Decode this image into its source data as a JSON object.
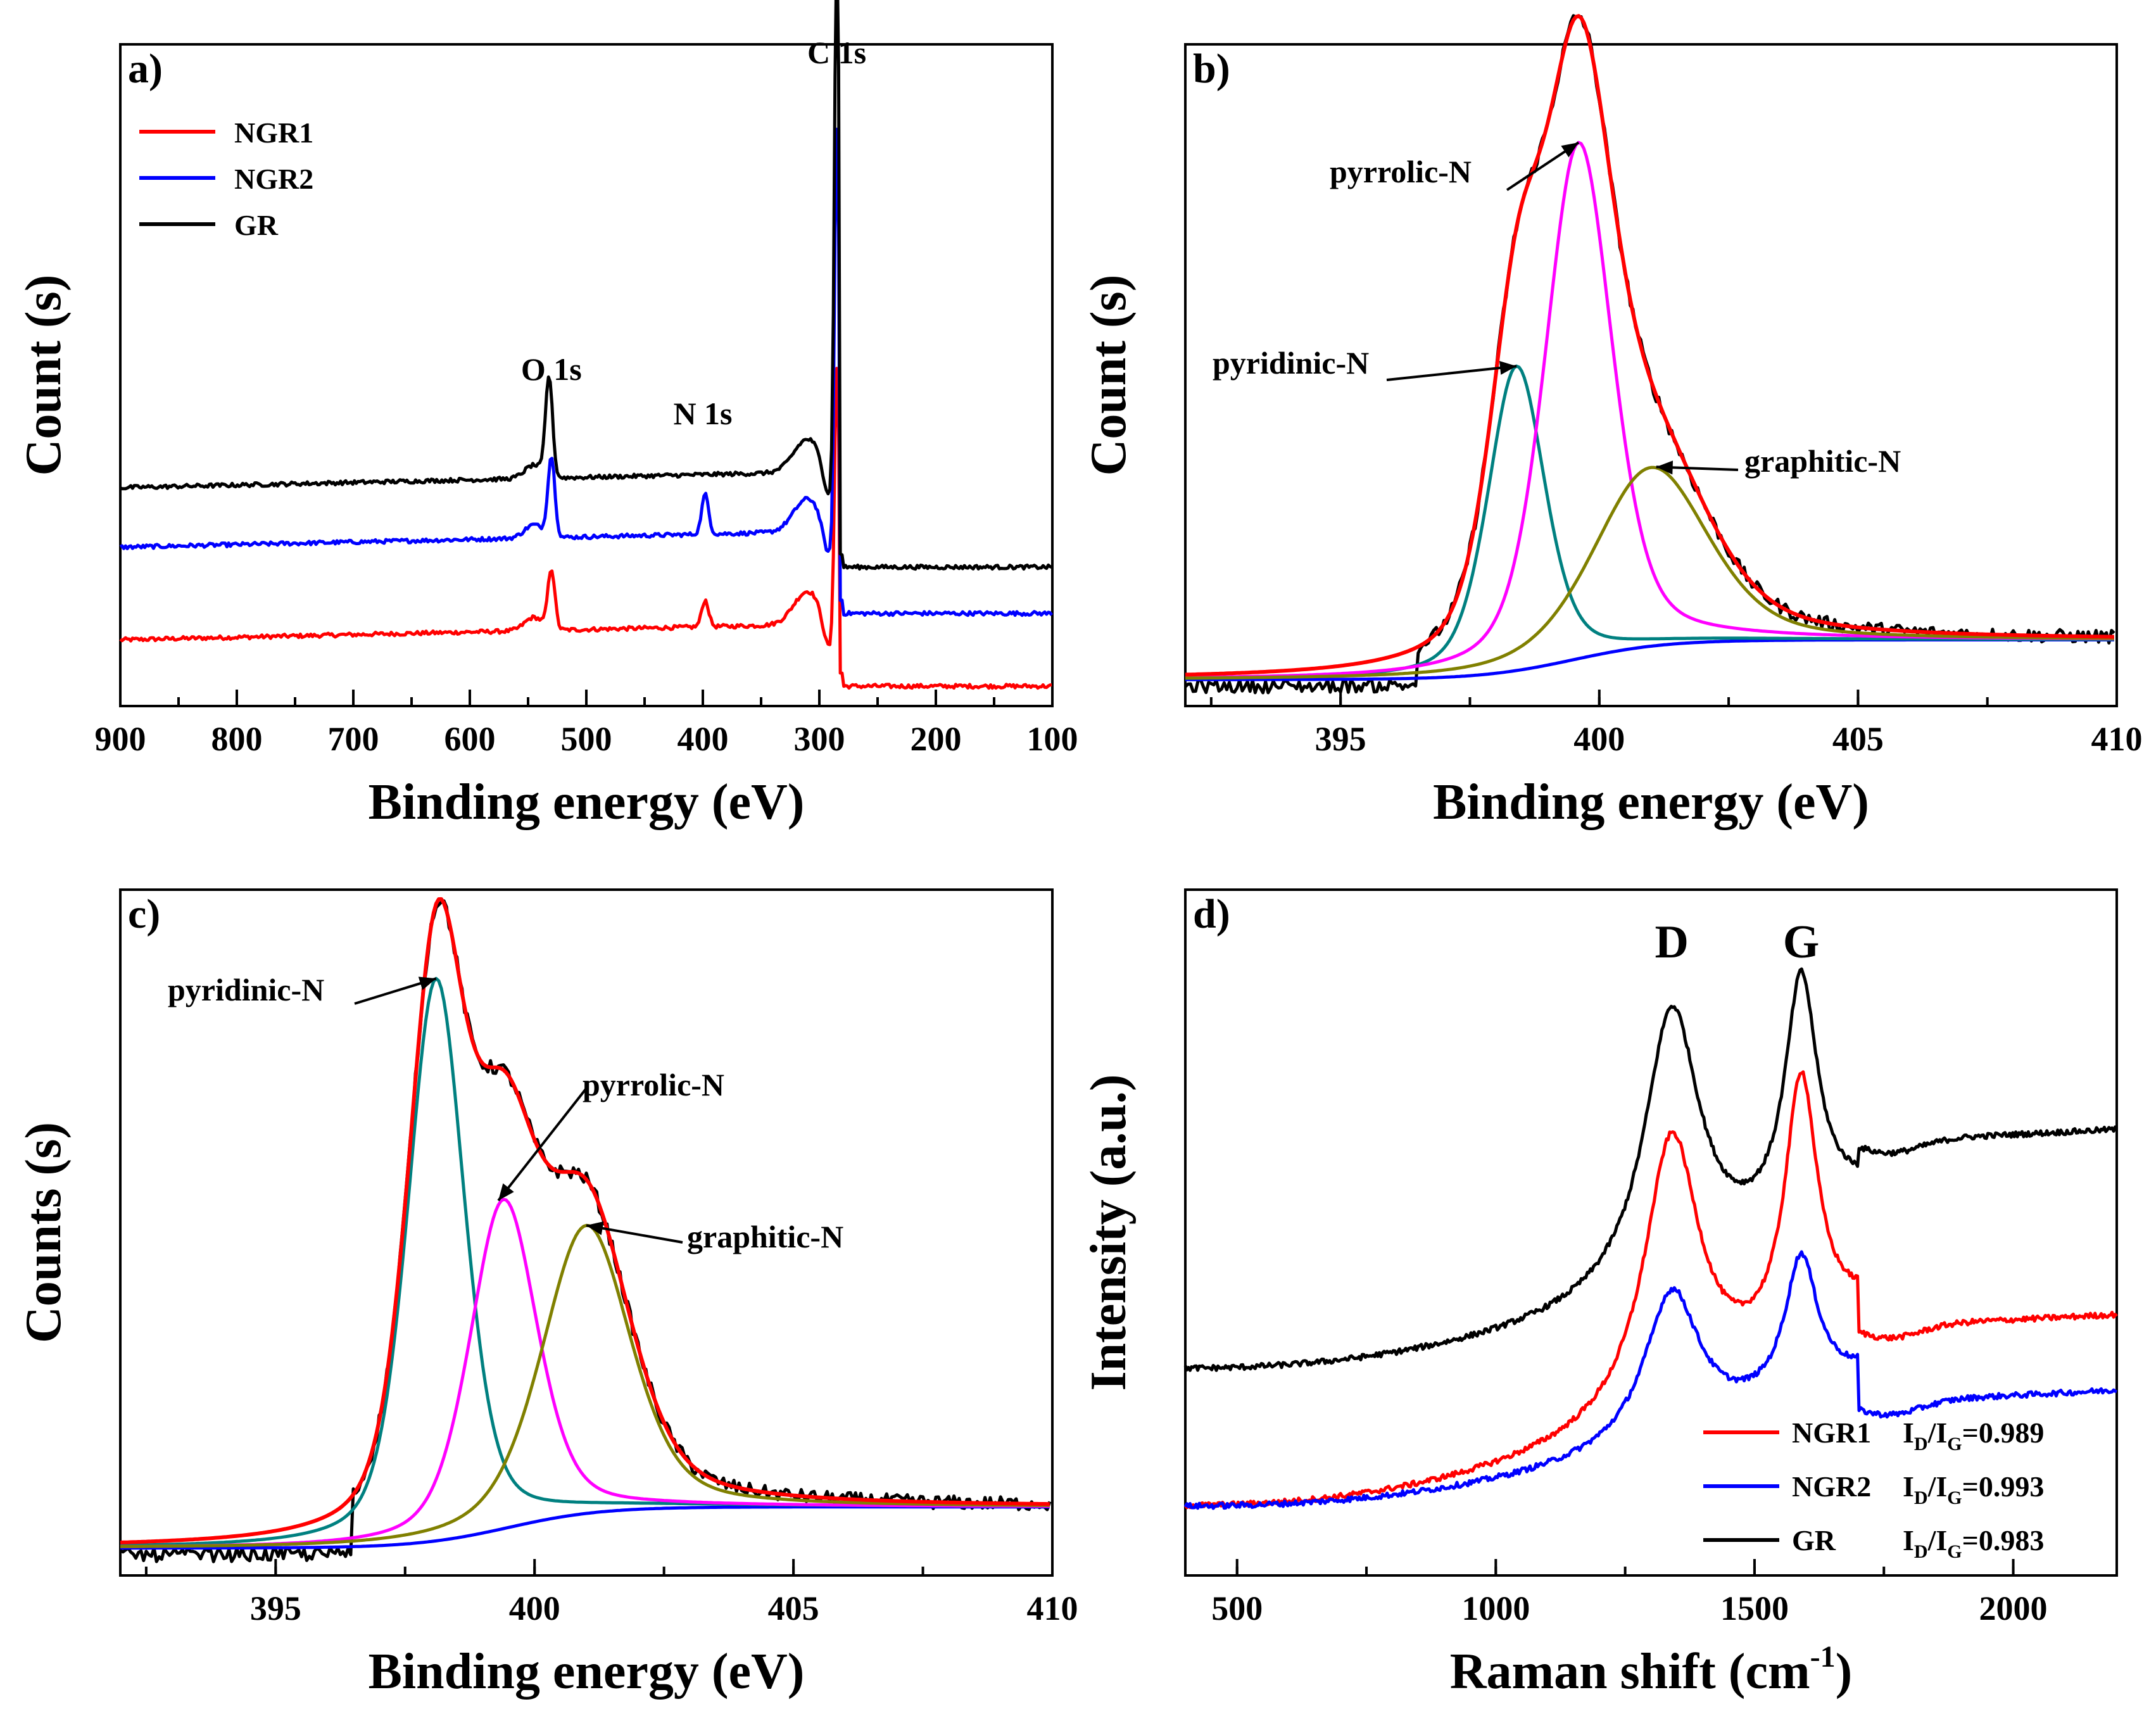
{
  "chart_data": [
    {
      "panel": "a)",
      "type": "line",
      "xlabel": "Binding energy (eV)",
      "ylabel": "Count (s)",
      "xlim": [
        900,
        100
      ],
      "xticks": [
        900,
        800,
        700,
        600,
        500,
        400,
        300,
        200,
        100
      ],
      "ylim": [
        0,
        1
      ],
      "legend": {
        "placement": "top-left",
        "entries": [
          "NGR1",
          "NGR2",
          "GR"
        ]
      },
      "annotations": [
        {
          "text": "O 1s",
          "x": 530
        },
        {
          "text": "N 1s",
          "x": 400
        },
        {
          "text": "C 1s",
          "x": 285
        }
      ],
      "series": [
        {
          "name": "NGR1",
          "color": "#ff0000",
          "offset": 0.1,
          "slope": 0.035,
          "tail": 0.03,
          "peaks": [
            {
              "x": 530,
              "h": 0.09,
              "w": 3
            },
            {
              "x": 398,
              "h": 0.04,
              "w": 3
            },
            {
              "x": 285,
              "h": 0.4,
              "w": 2
            }
          ]
        },
        {
          "name": "NGR2",
          "color": "#0000ff",
          "offset": 0.24,
          "slope": 0.035,
          "tail": 0.14,
          "peaks": [
            {
              "x": 530,
              "h": 0.12,
              "w": 3
            },
            {
              "x": 398,
              "h": 0.06,
              "w": 3
            },
            {
              "x": 285,
              "h": 0.62,
              "w": 2
            }
          ]
        },
        {
          "name": "GR",
          "color": "#000000",
          "offset": 0.33,
          "slope": 0.035,
          "tail": 0.21,
          "peaks": [
            {
              "x": 532,
              "h": 0.15,
              "w": 3
            },
            {
              "x": 285,
              "h": 0.82,
              "w": 2
            }
          ]
        }
      ]
    },
    {
      "panel": "b)",
      "type": "line",
      "xlabel": "Binding energy (eV)",
      "ylabel": "Count (s)",
      "xlim": [
        392,
        410
      ],
      "xticks": [
        395,
        400,
        405,
        410
      ],
      "ylim": [
        0,
        1
      ],
      "annotations": [
        {
          "text": "pyrrolic-N",
          "arrow_to": [
            399.6,
            0.78
          ]
        },
        {
          "text": "pyridinic-N",
          "arrow_to": [
            398.4,
            0.46
          ]
        },
        {
          "text": "graphitic-N",
          "arrow_to": [
            401.1,
            0.27
          ]
        }
      ],
      "components": [
        {
          "name": "pyridinic-N",
          "center": 398.4,
          "height": 0.46,
          "width": 0.55,
          "color": "#008080"
        },
        {
          "name": "pyrrolic-N",
          "center": 399.6,
          "height": 0.78,
          "width": 0.65,
          "color": "#ff00ff"
        },
        {
          "name": "graphitic-N",
          "center": 401.0,
          "height": 0.27,
          "width": 1.1,
          "color": "#808000"
        }
      ],
      "background": {
        "color": "#0000ff",
        "low": 0.04,
        "high": 0.1,
        "center": 399.5
      },
      "envelope_color": "#ff0000",
      "raw_color": "#000000"
    },
    {
      "panel": "c)",
      "type": "line",
      "xlabel": "Binding energy (eV)",
      "ylabel": "Counts (s)",
      "xlim": [
        392,
        410
      ],
      "xticks": [
        395,
        400,
        405,
        410
      ],
      "ylim": [
        0,
        1
      ],
      "annotations": [
        {
          "text": "pyridinic-N",
          "arrow_to": [
            398.1,
            0.82
          ]
        },
        {
          "text": "pyrrolic-N",
          "arrow_to": [
            399.3,
            0.48
          ]
        },
        {
          "text": "graphitic-N",
          "arrow_to": [
            401.0,
            0.42
          ]
        }
      ],
      "components": [
        {
          "name": "pyridinic-N",
          "center": 398.1,
          "height": 0.82,
          "width": 0.55,
          "color": "#008080"
        },
        {
          "name": "pyrrolic-N",
          "center": 399.4,
          "height": 0.48,
          "width": 0.65,
          "color": "#ff00ff"
        },
        {
          "name": "graphitic-N",
          "center": 401.0,
          "height": 0.42,
          "width": 0.85,
          "color": "#808000"
        }
      ],
      "background": {
        "color": "#0000ff",
        "low": 0.04,
        "high": 0.1,
        "center": 399.5
      },
      "envelope_color": "#ff0000",
      "raw_color": "#000000"
    },
    {
      "panel": "d)",
      "type": "line",
      "xlabel": "Raman shift (cm",
      "xlabel_sup": "-1",
      "xlabel_end": ")",
      "ylabel": "Intensity (a.u.)",
      "xlim": [
        400,
        2200
      ],
      "xticks": [
        500,
        1000,
        1500,
        2000
      ],
      "ylim": [
        0,
        1
      ],
      "peak_labels": [
        {
          "text": "D",
          "x": 1340
        },
        {
          "text": "G",
          "x": 1590
        }
      ],
      "legend": {
        "placement": "bottom-right",
        "entries": [
          {
            "name": "NGR1",
            "ratio": "0.989",
            "color": "#ff0000"
          },
          {
            "name": "NGR2",
            "ratio": "0.993",
            "color": "#0000ff"
          },
          {
            "name": "GR",
            "ratio": "0.983",
            "color": "#000000"
          }
        ]
      },
      "ratio_label": {
        "I": "I",
        "D": "D",
        "G": "G",
        "slash": "/",
        "eq": "="
      },
      "series": [
        {
          "name": "GR",
          "color": "#000000",
          "base0": 0.3,
          "base1": 0.55,
          "dHeight": 0.4,
          "gHeight": 0.35,
          "tail": 0.63
        },
        {
          "name": "NGR1",
          "color": "#ff0000",
          "base0": 0.1,
          "base1": 0.38,
          "dHeight": 0.4,
          "gHeight": 0.38,
          "tail": 0.36
        },
        {
          "name": "NGR2",
          "color": "#0000ff",
          "base0": 0.1,
          "base1": 0.29,
          "dHeight": 0.22,
          "gHeight": 0.2,
          "tail": 0.25
        }
      ]
    }
  ]
}
